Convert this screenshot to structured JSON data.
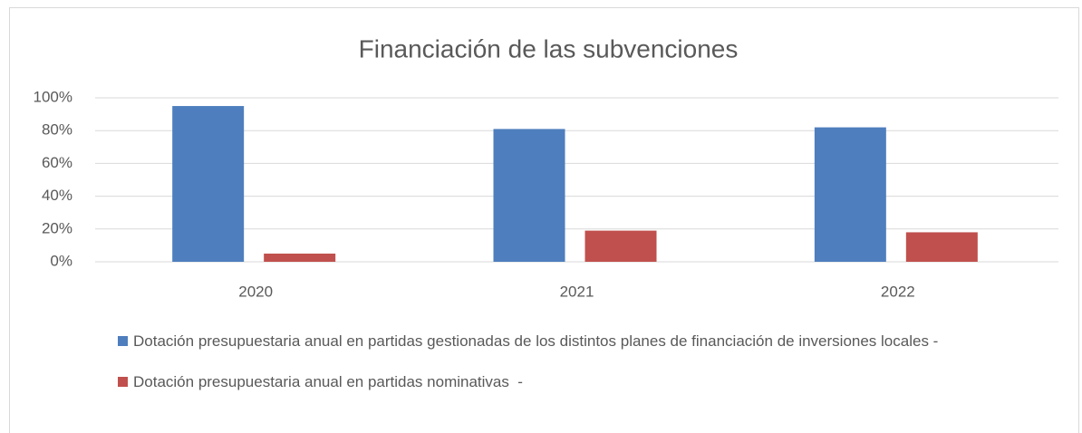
{
  "chart_data": {
    "type": "bar",
    "title": "Financiación de las subvenciones",
    "categories": [
      "2020",
      "2021",
      "2022"
    ],
    "series": [
      {
        "name": "Dotación presupuestaria anual en partidas gestionadas de los distintos planes de financiación de inversiones locales -",
        "color": "#4e7ebd",
        "values": [
          95,
          81,
          82
        ]
      },
      {
        "name": "Dotación presupuestaria anual en partidas nominativas  -",
        "color": "#c0504d",
        "values": [
          5,
          19,
          18
        ]
      }
    ],
    "ylim": [
      0,
      100
    ],
    "yticks": [
      {
        "value": 0,
        "label": "0%"
      },
      {
        "value": 20,
        "label": "20%"
      },
      {
        "value": 40,
        "label": "40%"
      },
      {
        "value": 60,
        "label": "60%"
      },
      {
        "value": 80,
        "label": "80%"
      },
      {
        "value": 100,
        "label": "100%"
      }
    ],
    "grid": true,
    "legend": "bottom"
  }
}
